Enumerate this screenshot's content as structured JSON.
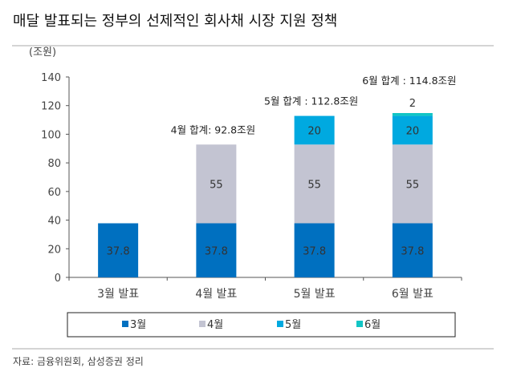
{
  "chart_data": {
    "type": "bar",
    "stacked": true,
    "title": "매달 발표되는 정부의 선제적인 회사채 시장 지원 정책",
    "ylabel": "(조원)",
    "ylim": [
      0,
      140
    ],
    "yticks": [
      0,
      20,
      40,
      60,
      80,
      100,
      120,
      140
    ],
    "categories": [
      "3월 발표",
      "4월 발표",
      "5월 발표",
      "6월 발표"
    ],
    "series": [
      {
        "name": "3월",
        "color": "#0070c0",
        "values": [
          37.8,
          37.8,
          37.8,
          37.8
        ],
        "labels": [
          "37.8",
          "37.8",
          "37.8",
          "37.8"
        ]
      },
      {
        "name": "4월",
        "color": "#c3c4d2",
        "values": [
          0,
          55,
          55,
          55
        ],
        "labels": [
          "",
          "55",
          "55",
          "55"
        ]
      },
      {
        "name": "5월",
        "color": "#00a9e0",
        "values": [
          0,
          0,
          20,
          20
        ],
        "labels": [
          "",
          "",
          "20",
          "20"
        ]
      },
      {
        "name": "6월",
        "color": "#12c5c5",
        "values": [
          0,
          0,
          0,
          2
        ],
        "labels": [
          "",
          "",
          "",
          "2"
        ]
      }
    ],
    "annotations": [
      "",
      "4월 합계: 92.8조원",
      "5월 합계 : 112.8조원",
      "6월 합계 : 114.8조원"
    ],
    "legend_position": "bottom",
    "grid": false
  },
  "source": "자료: 금융위원회, 삼성증권 정리"
}
